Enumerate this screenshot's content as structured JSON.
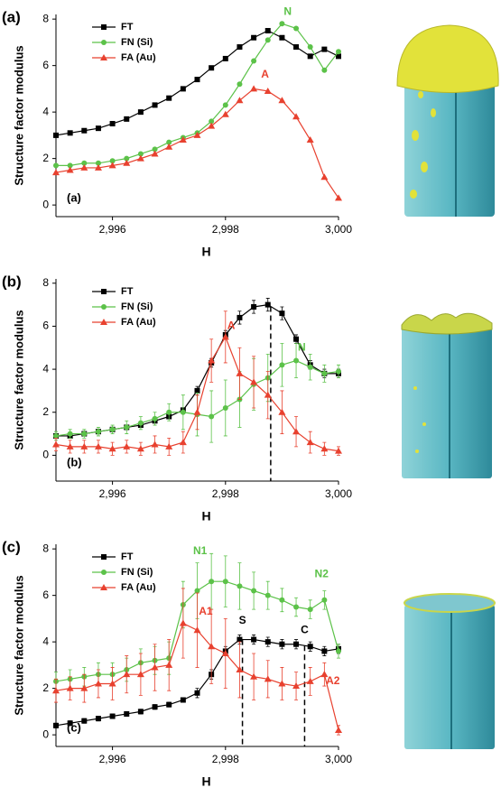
{
  "chart_data": [
    {
      "type": "line",
      "panel_label": "(a)",
      "inner_label": "(a)",
      "x_label": "H",
      "y_label": "Structure factor modulus",
      "xlim": [
        2995,
        3000
      ],
      "ylim": [
        -0.5,
        8.2
      ],
      "xticks": [
        {
          "value": 2996,
          "label": "2,996"
        },
        {
          "value": 2998,
          "label": "2,998"
        },
        {
          "value": 3000,
          "label": "3,000"
        }
      ],
      "yticks": [
        0,
        2,
        4,
        6,
        8
      ],
      "legend": "upper left",
      "x": [
        2995,
        2995.25,
        2995.5,
        2995.75,
        2996,
        2996.25,
        2996.5,
        2996.75,
        2997,
        2997.25,
        2997.5,
        2997.75,
        2998,
        2998.25,
        2998.5,
        2998.75,
        2999,
        2999.25,
        2999.5,
        2999.75,
        3000
      ],
      "series": [
        {
          "name": "FT",
          "color": "#000000",
          "marker": "square",
          "values": [
            3.0,
            3.1,
            3.2,
            3.3,
            3.5,
            3.7,
            4.0,
            4.3,
            4.6,
            5.0,
            5.4,
            5.9,
            6.3,
            6.8,
            7.2,
            7.5,
            7.2,
            6.8,
            6.4,
            6.7,
            6.4
          ]
        },
        {
          "name": "FN (Si)",
          "color": "#5cc249",
          "marker": "circle",
          "values": [
            1.7,
            1.7,
            1.8,
            1.8,
            1.9,
            2.0,
            2.2,
            2.4,
            2.7,
            2.9,
            3.1,
            3.6,
            4.3,
            5.2,
            6.2,
            7.1,
            7.8,
            7.6,
            6.8,
            5.8,
            6.6
          ]
        },
        {
          "name": "FA (Au)",
          "color": "#e8412f",
          "marker": "triangle",
          "values": [
            1.4,
            1.5,
            1.6,
            1.6,
            1.7,
            1.8,
            2.0,
            2.2,
            2.5,
            2.8,
            3.0,
            3.4,
            3.9,
            4.5,
            5.0,
            4.9,
            4.5,
            3.8,
            2.8,
            1.2,
            0.3
          ]
        }
      ],
      "annotations": [
        {
          "text": "N",
          "x": 2999.1,
          "y": 8.3,
          "color": "#5cc249"
        },
        {
          "text": "A",
          "x": 2998.7,
          "y": 5.6,
          "color": "#e8412f"
        }
      ],
      "vlines": []
    },
    {
      "type": "line",
      "panel_label": "(b)",
      "inner_label": "(b)",
      "x_label": "H",
      "y_label": "Structure factor modulus",
      "xlim": [
        2995,
        3000
      ],
      "ylim": [
        -1.2,
        8.2
      ],
      "xticks": [
        {
          "value": 2996,
          "label": "2,996"
        },
        {
          "value": 2998,
          "label": "2,998"
        },
        {
          "value": 3000,
          "label": "3,000"
        }
      ],
      "yticks": [
        0,
        2,
        4,
        6,
        8
      ],
      "legend": "upper left",
      "x": [
        2995,
        2995.25,
        2995.5,
        2995.75,
        2996,
        2996.25,
        2996.5,
        2996.75,
        2997,
        2997.25,
        2997.5,
        2997.75,
        2998,
        2998.25,
        2998.5,
        2998.75,
        2999,
        2999.25,
        2999.5,
        2999.75,
        3000
      ],
      "series": [
        {
          "name": "FT",
          "color": "#000000",
          "marker": "square",
          "values": [
            0.9,
            0.9,
            1.0,
            1.1,
            1.2,
            1.3,
            1.4,
            1.6,
            1.8,
            2.1,
            3.0,
            4.3,
            5.6,
            6.4,
            6.9,
            7.0,
            6.6,
            5.4,
            4.2,
            3.8,
            3.8
          ],
          "errors": [
            0.1,
            0.1,
            0.1,
            0.1,
            0.1,
            0.1,
            0.1,
            0.1,
            0.1,
            0.1,
            0.2,
            0.2,
            0.2,
            0.3,
            0.3,
            0.3,
            0.3,
            0.2,
            0.2,
            0.2,
            0.2
          ]
        },
        {
          "name": "FN (Si)",
          "color": "#5cc249",
          "marker": "circle",
          "values": [
            0.9,
            1.0,
            1.0,
            1.1,
            1.2,
            1.3,
            1.5,
            1.7,
            2.0,
            2.0,
            1.9,
            1.8,
            2.2,
            2.6,
            3.3,
            3.6,
            4.2,
            4.4,
            4.1,
            3.8,
            3.9
          ],
          "errors": [
            0.2,
            0.2,
            0.2,
            0.2,
            0.2,
            0.3,
            0.3,
            0.3,
            0.4,
            0.8,
            1.0,
            1.2,
            1.3,
            1.3,
            1.2,
            1.1,
            1.0,
            0.8,
            0.6,
            0.4,
            0.3
          ]
        },
        {
          "name": "FA (Au)",
          "color": "#e8412f",
          "marker": "triangle",
          "values": [
            0.5,
            0.4,
            0.4,
            0.4,
            0.3,
            0.4,
            0.3,
            0.5,
            0.4,
            0.6,
            2.0,
            4.4,
            5.5,
            3.8,
            3.4,
            2.8,
            2.0,
            1.1,
            0.6,
            0.3,
            0.2
          ],
          "errors": [
            0.3,
            0.3,
            0.3,
            0.3,
            0.3,
            0.3,
            0.3,
            0.4,
            0.4,
            0.5,
            0.8,
            1.0,
            1.2,
            1.2,
            1.2,
            1.1,
            1.0,
            0.7,
            0.5,
            0.3,
            0.2
          ]
        }
      ],
      "annotations": [
        {
          "text": "A",
          "x": 2998.1,
          "y": 6.0,
          "color": "#e8412f"
        },
        {
          "text": "N",
          "x": 2999.35,
          "y": 5.0,
          "color": "#5cc249"
        }
      ],
      "vlines": [
        2998.8
      ]
    },
    {
      "type": "line",
      "panel_label": "(c)",
      "inner_label": "(c)",
      "x_label": "H",
      "y_label": "Structure factor modulus",
      "xlim": [
        2995,
        3000
      ],
      "ylim": [
        -0.5,
        8.2
      ],
      "xticks": [
        {
          "value": 2996,
          "label": "2,996"
        },
        {
          "value": 2998,
          "label": "2,998"
        },
        {
          "value": 3000,
          "label": "3,000"
        }
      ],
      "yticks": [
        0,
        2,
        4,
        6,
        8
      ],
      "legend": "upper left",
      "x": [
        2995,
        2995.25,
        2995.5,
        2995.75,
        2996,
        2996.25,
        2996.5,
        2996.75,
        2997,
        2997.25,
        2997.5,
        2997.75,
        2998,
        2998.25,
        2998.5,
        2998.75,
        2999,
        2999.25,
        2999.5,
        2999.75,
        3000
      ],
      "series": [
        {
          "name": "FT",
          "color": "#000000",
          "marker": "square",
          "values": [
            0.4,
            0.5,
            0.6,
            0.7,
            0.8,
            0.9,
            1.0,
            1.2,
            1.3,
            1.5,
            1.8,
            2.6,
            3.6,
            4.1,
            4.1,
            4.0,
            3.9,
            3.9,
            3.8,
            3.6,
            3.7
          ],
          "errors": [
            0.1,
            0.1,
            0.1,
            0.1,
            0.1,
            0.1,
            0.1,
            0.1,
            0.1,
            0.1,
            0.2,
            0.2,
            0.2,
            0.2,
            0.2,
            0.2,
            0.2,
            0.2,
            0.2,
            0.2,
            0.2
          ]
        },
        {
          "name": "FN (Si)",
          "color": "#5cc249",
          "marker": "circle",
          "values": [
            2.3,
            2.4,
            2.5,
            2.6,
            2.6,
            2.8,
            3.1,
            3.2,
            3.3,
            5.6,
            6.2,
            6.6,
            6.6,
            6.4,
            6.2,
            6.0,
            5.8,
            5.5,
            5.4,
            5.8,
            3.6
          ],
          "errors": [
            0.4,
            0.4,
            0.4,
            0.5,
            0.5,
            0.5,
            0.6,
            0.6,
            0.7,
            1.0,
            1.2,
            1.2,
            1.1,
            1.0,
            0.8,
            0.6,
            0.5,
            0.4,
            0.4,
            0.4,
            0.3
          ]
        },
        {
          "name": "FA (Au)",
          "color": "#e8412f",
          "marker": "triangle",
          "values": [
            1.9,
            2.0,
            2.0,
            2.2,
            2.2,
            2.6,
            2.6,
            2.9,
            3.0,
            4.8,
            4.5,
            3.8,
            3.5,
            2.8,
            2.5,
            2.4,
            2.2,
            2.1,
            2.3,
            2.6,
            0.2
          ],
          "errors": [
            0.5,
            0.5,
            0.6,
            0.6,
            0.7,
            0.8,
            0.9,
            1.0,
            1.1,
            1.5,
            1.6,
            1.6,
            1.5,
            1.2,
            1.0,
            0.8,
            0.7,
            0.6,
            0.6,
            0.5,
            0.2
          ]
        }
      ],
      "annotations": [
        {
          "text": "N1",
          "x": 2997.55,
          "y": 7.9,
          "color": "#5cc249"
        },
        {
          "text": "N2",
          "x": 2999.7,
          "y": 6.9,
          "color": "#5cc249"
        },
        {
          "text": "A1",
          "x": 2997.65,
          "y": 5.3,
          "color": "#e8412f"
        },
        {
          "text": "A2",
          "x": 2999.9,
          "y": 2.3,
          "color": "#e8412f"
        },
        {
          "text": "S",
          "x": 2998.3,
          "y": 4.9,
          "color": "#000000"
        },
        {
          "text": "C",
          "x": 2999.4,
          "y": 4.5,
          "color": "#000000"
        }
      ],
      "vlines": [
        2998.3,
        2999.4
      ]
    }
  ]
}
